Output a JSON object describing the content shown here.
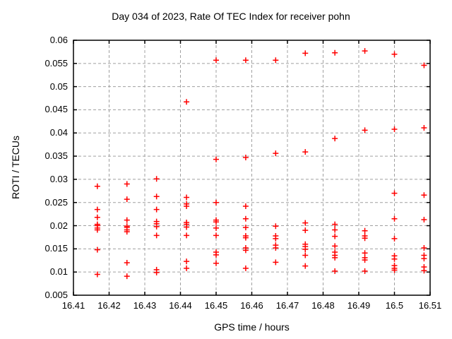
{
  "chart_data": {
    "type": "scatter",
    "title": "Day 034 of 2023, Rate Of TEC Index for receiver pohn",
    "xlabel": "GPS time / hours",
    "ylabel": "ROTI / TECUs",
    "xlim": [
      16.41,
      16.51
    ],
    "ylim": [
      0.005,
      0.06
    ],
    "xtick_labels": [
      "16.41",
      "16.42",
      "16.43",
      "16.44",
      "16.45",
      "16.46",
      "16.47",
      "16.48",
      "16.49",
      "16.5",
      "16.51"
    ],
    "ytick_labels": [
      "0.005",
      "0.01",
      "0.015",
      "0.02",
      "0.025",
      "0.03",
      "0.035",
      "0.04",
      "0.045",
      "0.05",
      "0.055",
      "0.06"
    ],
    "grid": true,
    "legend_position": "none",
    "marker": {
      "shape": "plus",
      "color": "#ff0000",
      "size": 9
    },
    "axis_color": "#000000",
    "grid_color": "#a0a0a0",
    "background": "#ffffff",
    "series": [
      {
        "name": "ROTI",
        "points": [
          [
            16.4167,
            0.0285
          ],
          [
            16.4167,
            0.0235
          ],
          [
            16.4167,
            0.0218
          ],
          [
            16.4167,
            0.0203
          ],
          [
            16.4167,
            0.02
          ],
          [
            16.4167,
            0.0195
          ],
          [
            16.4167,
            0.0191
          ],
          [
            16.4167,
            0.0148
          ],
          [
            16.4167,
            0.0095
          ],
          [
            16.425,
            0.029
          ],
          [
            16.425,
            0.0257
          ],
          [
            16.425,
            0.0212
          ],
          [
            16.425,
            0.0199
          ],
          [
            16.425,
            0.0196
          ],
          [
            16.425,
            0.0191
          ],
          [
            16.425,
            0.0187
          ],
          [
            16.425,
            0.012
          ],
          [
            16.425,
            0.0091
          ],
          [
            16.4333,
            0.0301
          ],
          [
            16.4333,
            0.0263
          ],
          [
            16.4333,
            0.0235
          ],
          [
            16.4333,
            0.0209
          ],
          [
            16.4333,
            0.0204
          ],
          [
            16.4333,
            0.0198
          ],
          [
            16.4333,
            0.0179
          ],
          [
            16.4333,
            0.0105
          ],
          [
            16.4333,
            0.0099
          ],
          [
            16.4417,
            0.0467
          ],
          [
            16.4417,
            0.0261
          ],
          [
            16.4417,
            0.0247
          ],
          [
            16.4417,
            0.0242
          ],
          [
            16.4417,
            0.0207
          ],
          [
            16.4417,
            0.0203
          ],
          [
            16.4417,
            0.0197
          ],
          [
            16.4417,
            0.0179
          ],
          [
            16.4417,
            0.0123
          ],
          [
            16.4417,
            0.0108
          ],
          [
            16.45,
            0.0557
          ],
          [
            16.45,
            0.0343
          ],
          [
            16.45,
            0.025
          ],
          [
            16.45,
            0.0212
          ],
          [
            16.45,
            0.0208
          ],
          [
            16.45,
            0.0195
          ],
          [
            16.45,
            0.0179
          ],
          [
            16.45,
            0.0143
          ],
          [
            16.45,
            0.0137
          ],
          [
            16.45,
            0.0119
          ],
          [
            16.4583,
            0.0557
          ],
          [
            16.4583,
            0.0347
          ],
          [
            16.4583,
            0.0242
          ],
          [
            16.4583,
            0.0215
          ],
          [
            16.4583,
            0.0196
          ],
          [
            16.4583,
            0.0178
          ],
          [
            16.4583,
            0.0174
          ],
          [
            16.4583,
            0.0152
          ],
          [
            16.4583,
            0.0147
          ],
          [
            16.4583,
            0.0108
          ],
          [
            16.4667,
            0.0557
          ],
          [
            16.4667,
            0.0356
          ],
          [
            16.4667,
            0.0199
          ],
          [
            16.4667,
            0.0178
          ],
          [
            16.4667,
            0.0172
          ],
          [
            16.4667,
            0.0158
          ],
          [
            16.4667,
            0.0152
          ],
          [
            16.4667,
            0.0121
          ],
          [
            16.475,
            0.0572
          ],
          [
            16.475,
            0.0359
          ],
          [
            16.475,
            0.0206
          ],
          [
            16.475,
            0.019
          ],
          [
            16.475,
            0.016
          ],
          [
            16.475,
            0.0155
          ],
          [
            16.475,
            0.0149
          ],
          [
            16.475,
            0.0136
          ],
          [
            16.475,
            0.0113
          ],
          [
            16.4833,
            0.0573
          ],
          [
            16.4833,
            0.0388
          ],
          [
            16.4833,
            0.0203
          ],
          [
            16.4833,
            0.0191
          ],
          [
            16.4833,
            0.0177
          ],
          [
            16.4833,
            0.0156
          ],
          [
            16.4833,
            0.0143
          ],
          [
            16.4833,
            0.0136
          ],
          [
            16.4833,
            0.0131
          ],
          [
            16.4833,
            0.0102
          ],
          [
            16.4917,
            0.0577
          ],
          [
            16.4917,
            0.0406
          ],
          [
            16.4917,
            0.0189
          ],
          [
            16.4917,
            0.0178
          ],
          [
            16.4917,
            0.0173
          ],
          [
            16.4917,
            0.0141
          ],
          [
            16.4917,
            0.0131
          ],
          [
            16.4917,
            0.0126
          ],
          [
            16.4917,
            0.0102
          ],
          [
            16.5,
            0.057
          ],
          [
            16.5,
            0.0408
          ],
          [
            16.5,
            0.027
          ],
          [
            16.5,
            0.0215
          ],
          [
            16.5,
            0.0172
          ],
          [
            16.5,
            0.0135
          ],
          [
            16.5,
            0.0128
          ],
          [
            16.5,
            0.0114
          ],
          [
            16.5,
            0.0108
          ],
          [
            16.5,
            0.0104
          ],
          [
            16.5083,
            0.0546
          ],
          [
            16.5083,
            0.0411
          ],
          [
            16.5083,
            0.0266
          ],
          [
            16.5083,
            0.0213
          ],
          [
            16.5083,
            0.0152
          ],
          [
            16.5083,
            0.0136
          ],
          [
            16.5083,
            0.0129
          ],
          [
            16.5083,
            0.0111
          ],
          [
            16.5083,
            0.0103
          ]
        ]
      }
    ]
  }
}
